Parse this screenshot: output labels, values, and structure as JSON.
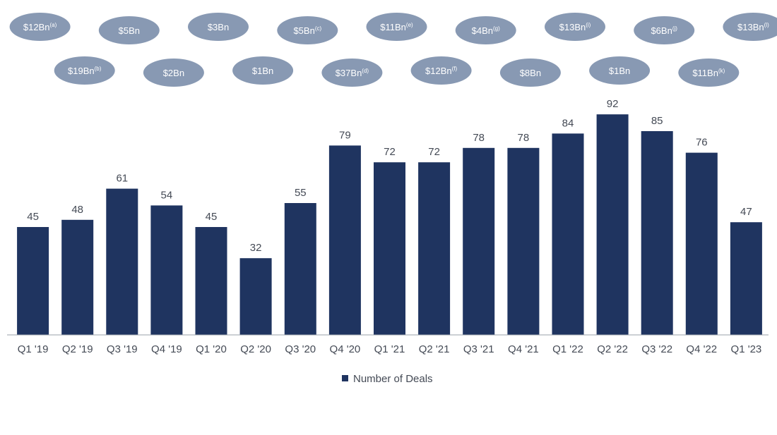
{
  "chart_data": {
    "type": "bar",
    "categories": [
      "Q1 '19",
      "Q2 '19",
      "Q3 '19",
      "Q4 '19",
      "Q1 '20",
      "Q2 '20",
      "Q3 '20",
      "Q4 '20",
      "Q1 '21",
      "Q2 '21",
      "Q3 '21",
      "Q4 '21",
      "Q1 '22",
      "Q2 '22",
      "Q3 '22",
      "Q4 '22",
      "Q1 '23"
    ],
    "series": [
      {
        "name": "Number of Deals",
        "values": [
          45,
          48,
          61,
          54,
          45,
          32,
          55,
          79,
          72,
          72,
          78,
          78,
          84,
          92,
          85,
          76,
          47
        ],
        "color": "#1f3460"
      }
    ],
    "deal_values": [
      {
        "label": "$12Bn",
        "note": "(a)"
      },
      {
        "label": "$19Bn",
        "note": "(b)"
      },
      {
        "label": "$5Bn",
        "note": ""
      },
      {
        "label": "$2Bn",
        "note": ""
      },
      {
        "label": "$3Bn",
        "note": ""
      },
      {
        "label": "$1Bn",
        "note": ""
      },
      {
        "label": "$5Bn",
        "note": "(c)"
      },
      {
        "label": "$37Bn",
        "note": "(d)"
      },
      {
        "label": "$11Bn",
        "note": "(e)"
      },
      {
        "label": "$12Bn",
        "note": "(f)"
      },
      {
        "label": "$4Bn",
        "note": "(g)"
      },
      {
        "label": "$8Bn",
        "note": ""
      },
      {
        "label": "$13Bn",
        "note": "(i)"
      },
      {
        "label": "$1Bn",
        "note": ""
      },
      {
        "label": "$6Bn",
        "note": "(j)"
      },
      {
        "label": "$11Bn",
        "note": "(k)"
      },
      {
        "label": "$13Bn",
        "note": "(l)"
      }
    ],
    "ylim": [
      0,
      100
    ],
    "grid": false,
    "legend_position": "bottom-center",
    "colors": {
      "bar": "#1f3460",
      "bubble": "#8899b3",
      "axis": "#9aa0aa",
      "text": "#444a55"
    }
  }
}
